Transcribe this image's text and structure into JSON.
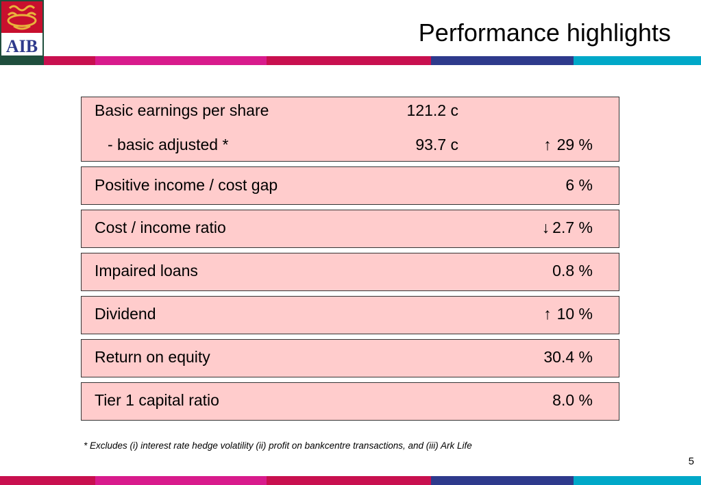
{
  "header": {
    "logo_text": "AIB",
    "title": "Performance highlights"
  },
  "colors": {
    "logo_bg": "#1f4e3d",
    "logo_red": "#c8102e",
    "logo_gold": "#e8b33c",
    "box_fill": "#ffcccc",
    "stripe": [
      "#c8104f",
      "#d81b8c",
      "#c8104f",
      "#2e3a8c",
      "#00a8c8"
    ]
  },
  "metrics": [
    {
      "label": "Basic earnings per share",
      "value": "121.2 c",
      "change": ""
    },
    {
      "label": "- basic adjusted *",
      "value": "93.7 c",
      "arrow": "↑",
      "change": "29 %"
    },
    {
      "label": "Positive income / cost gap",
      "change": "6 %"
    },
    {
      "label": "Cost / income ratio",
      "arrow": "↓",
      "change": "2.7 %"
    },
    {
      "label": "Impaired loans",
      "change": "0.8 %"
    },
    {
      "label": "Dividend",
      "arrow": "↑",
      "change": "10 %"
    },
    {
      "label": "Return on equity",
      "change": "30.4 %"
    },
    {
      "label": "Tier 1 capital ratio",
      "change": "8.0 %"
    }
  ],
  "footnote": "* Excludes (i) interest rate hedge volatility (ii) profit on bankcentre transactions, and (iii) Ark Life",
  "page_number": "5"
}
